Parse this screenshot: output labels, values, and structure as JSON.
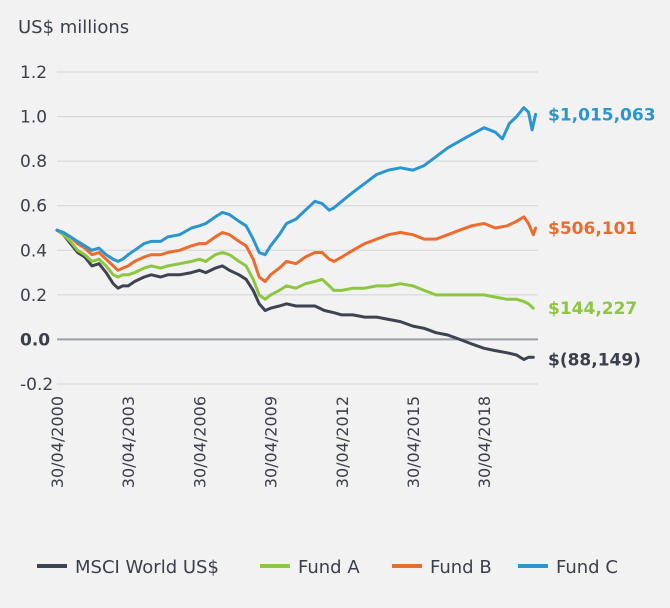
{
  "chart_data": {
    "type": "line",
    "ylabel": "US$ millions",
    "ylim": [
      -0.2,
      1.2
    ],
    "yticks": [
      "1.2",
      "1.0",
      "0.8",
      "0.6",
      "0.4",
      "0.2",
      "0.0",
      "-0.2"
    ],
    "ytick_values": [
      1.2,
      1.0,
      0.8,
      0.6,
      0.4,
      0.2,
      0.0,
      -0.2
    ],
    "xlim": [
      2000.33,
      2020.6
    ],
    "xticks": [
      "30/04/2000",
      "30/04/2003",
      "30/04/2006",
      "30/04/2009",
      "30/04/2012",
      "30/04/2015",
      "30/04/2018"
    ],
    "xtick_values": [
      2000.33,
      2003.33,
      2006.33,
      2009.33,
      2012.33,
      2015.33,
      2018.33
    ],
    "grid": "horizontal",
    "legend_position": "bottom",
    "series": [
      {
        "name": "MSCI World US$",
        "color": "#3d4350",
        "end_label": "$(88,149)",
        "points": [
          [
            2000.33,
            0.49
          ],
          [
            2000.6,
            0.47
          ],
          [
            2000.9,
            0.43
          ],
          [
            2001.2,
            0.39
          ],
          [
            2001.5,
            0.37
          ],
          [
            2001.8,
            0.33
          ],
          [
            2002.1,
            0.34
          ],
          [
            2002.4,
            0.3
          ],
          [
            2002.7,
            0.25
          ],
          [
            2002.9,
            0.23
          ],
          [
            2003.1,
            0.24
          ],
          [
            2003.33,
            0.24
          ],
          [
            2003.6,
            0.26
          ],
          [
            2004.0,
            0.28
          ],
          [
            2004.3,
            0.29
          ],
          [
            2004.7,
            0.28
          ],
          [
            2005.0,
            0.29
          ],
          [
            2005.5,
            0.29
          ],
          [
            2006.0,
            0.3
          ],
          [
            2006.33,
            0.31
          ],
          [
            2006.6,
            0.3
          ],
          [
            2007.0,
            0.32
          ],
          [
            2007.3,
            0.33
          ],
          [
            2007.6,
            0.31
          ],
          [
            2008.0,
            0.29
          ],
          [
            2008.3,
            0.27
          ],
          [
            2008.6,
            0.22
          ],
          [
            2008.85,
            0.16
          ],
          [
            2009.1,
            0.13
          ],
          [
            2009.33,
            0.14
          ],
          [
            2009.7,
            0.15
          ],
          [
            2010.0,
            0.16
          ],
          [
            2010.4,
            0.15
          ],
          [
            2010.8,
            0.15
          ],
          [
            2011.2,
            0.15
          ],
          [
            2011.6,
            0.13
          ],
          [
            2012.0,
            0.12
          ],
          [
            2012.33,
            0.11
          ],
          [
            2012.8,
            0.11
          ],
          [
            2013.3,
            0.1
          ],
          [
            2013.8,
            0.1
          ],
          [
            2014.3,
            0.09
          ],
          [
            2014.8,
            0.08
          ],
          [
            2015.33,
            0.06
          ],
          [
            2015.8,
            0.05
          ],
          [
            2016.3,
            0.03
          ],
          [
            2016.8,
            0.02
          ],
          [
            2017.3,
            0.0
          ],
          [
            2017.8,
            -0.02
          ],
          [
            2018.33,
            -0.04
          ],
          [
            2018.8,
            -0.05
          ],
          [
            2019.3,
            -0.06
          ],
          [
            2019.7,
            -0.07
          ],
          [
            2020.0,
            -0.09
          ],
          [
            2020.2,
            -0.08
          ],
          [
            2020.4,
            -0.08
          ]
        ]
      },
      {
        "name": "Fund A",
        "color": "#8dc63f",
        "end_label": "$144,227",
        "points": [
          [
            2000.33,
            0.49
          ],
          [
            2000.6,
            0.47
          ],
          [
            2000.9,
            0.44
          ],
          [
            2001.2,
            0.4
          ],
          [
            2001.5,
            0.38
          ],
          [
            2001.8,
            0.35
          ],
          [
            2002.1,
            0.36
          ],
          [
            2002.4,
            0.33
          ],
          [
            2002.7,
            0.29
          ],
          [
            2002.9,
            0.28
          ],
          [
            2003.1,
            0.29
          ],
          [
            2003.33,
            0.29
          ],
          [
            2003.6,
            0.3
          ],
          [
            2004.0,
            0.32
          ],
          [
            2004.3,
            0.33
          ],
          [
            2004.7,
            0.32
          ],
          [
            2005.0,
            0.33
          ],
          [
            2005.5,
            0.34
          ],
          [
            2006.0,
            0.35
          ],
          [
            2006.33,
            0.36
          ],
          [
            2006.6,
            0.35
          ],
          [
            2007.0,
            0.38
          ],
          [
            2007.3,
            0.39
          ],
          [
            2007.6,
            0.38
          ],
          [
            2008.0,
            0.35
          ],
          [
            2008.3,
            0.33
          ],
          [
            2008.6,
            0.27
          ],
          [
            2008.85,
            0.2
          ],
          [
            2009.1,
            0.18
          ],
          [
            2009.33,
            0.2
          ],
          [
            2009.7,
            0.22
          ],
          [
            2010.0,
            0.24
          ],
          [
            2010.4,
            0.23
          ],
          [
            2010.8,
            0.25
          ],
          [
            2011.2,
            0.26
          ],
          [
            2011.5,
            0.27
          ],
          [
            2011.8,
            0.24
          ],
          [
            2012.0,
            0.22
          ],
          [
            2012.33,
            0.22
          ],
          [
            2012.8,
            0.23
          ],
          [
            2013.3,
            0.23
          ],
          [
            2013.8,
            0.24
          ],
          [
            2014.3,
            0.24
          ],
          [
            2014.8,
            0.25
          ],
          [
            2015.33,
            0.24
          ],
          [
            2015.8,
            0.22
          ],
          [
            2016.3,
            0.2
          ],
          [
            2016.8,
            0.2
          ],
          [
            2017.3,
            0.2
          ],
          [
            2017.8,
            0.2
          ],
          [
            2018.33,
            0.2
          ],
          [
            2018.8,
            0.19
          ],
          [
            2019.3,
            0.18
          ],
          [
            2019.7,
            0.18
          ],
          [
            2020.0,
            0.17
          ],
          [
            2020.2,
            0.16
          ],
          [
            2020.4,
            0.14
          ]
        ]
      },
      {
        "name": "Fund B",
        "color": "#ec6b2d",
        "end_label": "$506,101",
        "points": [
          [
            2000.33,
            0.49
          ],
          [
            2000.6,
            0.48
          ],
          [
            2000.9,
            0.46
          ],
          [
            2001.2,
            0.43
          ],
          [
            2001.5,
            0.41
          ],
          [
            2001.8,
            0.38
          ],
          [
            2002.1,
            0.39
          ],
          [
            2002.4,
            0.36
          ],
          [
            2002.7,
            0.33
          ],
          [
            2002.9,
            0.31
          ],
          [
            2003.1,
            0.32
          ],
          [
            2003.33,
            0.33
          ],
          [
            2003.6,
            0.35
          ],
          [
            2004.0,
            0.37
          ],
          [
            2004.3,
            0.38
          ],
          [
            2004.7,
            0.38
          ],
          [
            2005.0,
            0.39
          ],
          [
            2005.5,
            0.4
          ],
          [
            2006.0,
            0.42
          ],
          [
            2006.33,
            0.43
          ],
          [
            2006.6,
            0.43
          ],
          [
            2007.0,
            0.46
          ],
          [
            2007.3,
            0.48
          ],
          [
            2007.6,
            0.47
          ],
          [
            2008.0,
            0.44
          ],
          [
            2008.3,
            0.42
          ],
          [
            2008.6,
            0.36
          ],
          [
            2008.85,
            0.28
          ],
          [
            2009.1,
            0.26
          ],
          [
            2009.33,
            0.29
          ],
          [
            2009.7,
            0.32
          ],
          [
            2010.0,
            0.35
          ],
          [
            2010.4,
            0.34
          ],
          [
            2010.8,
            0.37
          ],
          [
            2011.2,
            0.39
          ],
          [
            2011.5,
            0.39
          ],
          [
            2011.8,
            0.36
          ],
          [
            2012.0,
            0.35
          ],
          [
            2012.33,
            0.37
          ],
          [
            2012.8,
            0.4
          ],
          [
            2013.3,
            0.43
          ],
          [
            2013.8,
            0.45
          ],
          [
            2014.3,
            0.47
          ],
          [
            2014.8,
            0.48
          ],
          [
            2015.33,
            0.47
          ],
          [
            2015.8,
            0.45
          ],
          [
            2016.3,
            0.45
          ],
          [
            2016.8,
            0.47
          ],
          [
            2017.3,
            0.49
          ],
          [
            2017.8,
            0.51
          ],
          [
            2018.33,
            0.52
          ],
          [
            2018.8,
            0.5
          ],
          [
            2019.3,
            0.51
          ],
          [
            2019.7,
            0.53
          ],
          [
            2020.0,
            0.55
          ],
          [
            2020.2,
            0.52
          ],
          [
            2020.4,
            0.47
          ],
          [
            2020.5,
            0.5
          ]
        ]
      },
      {
        "name": "Fund C",
        "color": "#2a95cf",
        "end_label": "$1,015,063",
        "points": [
          [
            2000.33,
            0.49
          ],
          [
            2000.6,
            0.48
          ],
          [
            2000.9,
            0.46
          ],
          [
            2001.2,
            0.44
          ],
          [
            2001.5,
            0.42
          ],
          [
            2001.8,
            0.4
          ],
          [
            2002.1,
            0.41
          ],
          [
            2002.4,
            0.38
          ],
          [
            2002.7,
            0.36
          ],
          [
            2002.9,
            0.35
          ],
          [
            2003.1,
            0.36
          ],
          [
            2003.33,
            0.38
          ],
          [
            2003.6,
            0.4
          ],
          [
            2004.0,
            0.43
          ],
          [
            2004.3,
            0.44
          ],
          [
            2004.7,
            0.44
          ],
          [
            2005.0,
            0.46
          ],
          [
            2005.5,
            0.47
          ],
          [
            2006.0,
            0.5
          ],
          [
            2006.33,
            0.51
          ],
          [
            2006.6,
            0.52
          ],
          [
            2007.0,
            0.55
          ],
          [
            2007.3,
            0.57
          ],
          [
            2007.6,
            0.56
          ],
          [
            2008.0,
            0.53
          ],
          [
            2008.3,
            0.51
          ],
          [
            2008.6,
            0.45
          ],
          [
            2008.85,
            0.39
          ],
          [
            2009.1,
            0.38
          ],
          [
            2009.33,
            0.42
          ],
          [
            2009.7,
            0.47
          ],
          [
            2010.0,
            0.52
          ],
          [
            2010.4,
            0.54
          ],
          [
            2010.8,
            0.58
          ],
          [
            2011.2,
            0.62
          ],
          [
            2011.5,
            0.61
          ],
          [
            2011.8,
            0.58
          ],
          [
            2012.0,
            0.59
          ],
          [
            2012.33,
            0.62
          ],
          [
            2012.8,
            0.66
          ],
          [
            2013.3,
            0.7
          ],
          [
            2013.8,
            0.74
          ],
          [
            2014.3,
            0.76
          ],
          [
            2014.8,
            0.77
          ],
          [
            2015.33,
            0.76
          ],
          [
            2015.8,
            0.78
          ],
          [
            2016.3,
            0.82
          ],
          [
            2016.8,
            0.86
          ],
          [
            2017.3,
            0.89
          ],
          [
            2017.8,
            0.92
          ],
          [
            2018.33,
            0.95
          ],
          [
            2018.8,
            0.93
          ],
          [
            2019.1,
            0.9
          ],
          [
            2019.4,
            0.97
          ],
          [
            2019.7,
            1.0
          ],
          [
            2020.0,
            1.04
          ],
          [
            2020.2,
            1.02
          ],
          [
            2020.35,
            0.94
          ],
          [
            2020.5,
            1.01
          ]
        ]
      }
    ]
  }
}
